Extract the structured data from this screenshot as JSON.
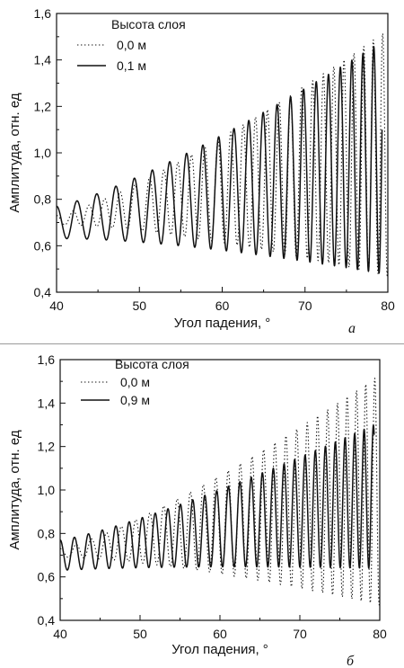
{
  "chart_data": [
    {
      "type": "line",
      "panel_label": "а",
      "xlabel": "Угол падения, °",
      "ylabel": "Амплитуда, отн. ед",
      "xlim": [
        40,
        80
      ],
      "ylim": [
        0.4,
        1.6
      ],
      "x_ticks": [
        "40",
        "50",
        "60",
        "70",
        "80"
      ],
      "y_ticks": [
        "0,4",
        "0,6",
        "0,8",
        "1,0",
        "1,2",
        "1,4",
        "1,6"
      ],
      "legend_title": "Высота слоя",
      "legend_position": "top-left",
      "series": [
        {
          "name": "0,0 м",
          "style": "dotted",
          "x_range": [
            40,
            80
          ],
          "mean_start": 0.71,
          "mean_end": 1.0,
          "amp_start": 0.02,
          "amp_end": 0.53,
          "period_start": 2.0,
          "period_end": 1.1
        },
        {
          "name": "0,1 м",
          "style": "solid",
          "x_range": [
            40,
            79.3
          ],
          "mean_start": 0.7,
          "mean_end": 0.98,
          "amp_start": 0.07,
          "amp_end": 0.5,
          "period_start": 2.5,
          "period_end": 1.25
        }
      ]
    },
    {
      "type": "line",
      "panel_label": "б",
      "xlabel": "Угол падения, °",
      "ylabel": "Амплитуда, отн. ед",
      "xlim": [
        40,
        80
      ],
      "ylim": [
        0.4,
        1.6
      ],
      "x_ticks": [
        "40",
        "50",
        "60",
        "70",
        "80"
      ],
      "y_ticks": [
        "0,4",
        "0,6",
        "0,8",
        "1,0",
        "1,2",
        "1,4",
        "1,6"
      ],
      "legend_title": "Высота слоя",
      "legend_position": "top-left",
      "series": [
        {
          "name": "0,0 м",
          "style": "dotted",
          "x_range": [
            40,
            80
          ],
          "mean_start": 0.71,
          "mean_end": 1.0,
          "amp_start": 0.02,
          "amp_end": 0.53,
          "period_start": 2.0,
          "period_end": 1.1
        },
        {
          "name": "0,9 м",
          "style": "solid",
          "x_range": [
            40,
            79.3
          ],
          "mean_start": 0.7,
          "mean_end": 0.97,
          "amp_start": 0.07,
          "amp_end": 0.33,
          "period_start": 1.8,
          "period_end": 1.15
        }
      ]
    }
  ]
}
